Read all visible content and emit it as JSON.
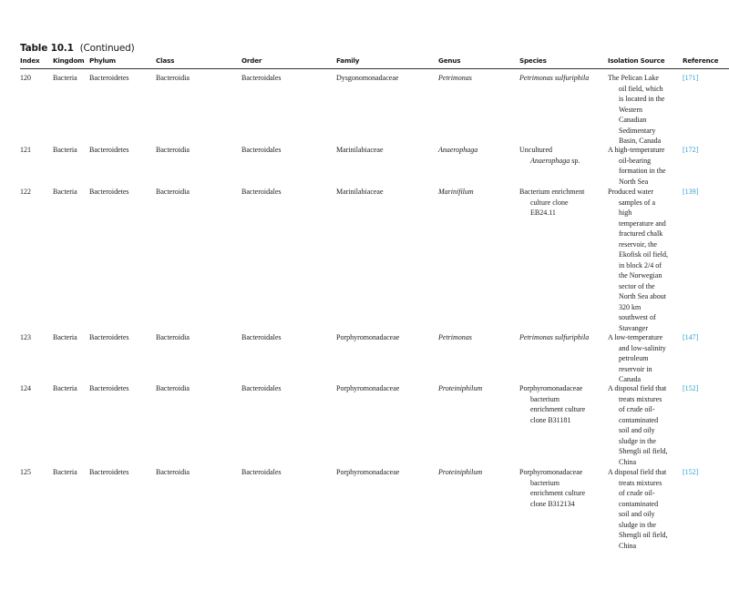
{
  "table": {
    "title": "Table 10.1",
    "title_suffix": "(Continued)",
    "headers": [
      "Index",
      "Kingdom",
      "Phylum",
      "Class",
      "Order",
      "Family",
      "Genus",
      "Species",
      "Isolation Source",
      "Reference"
    ],
    "colors": {
      "reference_link": "#2a9fd0"
    },
    "rows": [
      {
        "index": "120",
        "kingdom": "Bacteria",
        "phylum": "Bacteroidetes",
        "class": "Bacteroidia",
        "order": "Bacteroidales",
        "family": "Dysgonomonadaceae",
        "genus": "Petrimonas",
        "species": [
          "Petrimonas sulfuriphila"
        ],
        "species_italic": true,
        "source": [
          "The Pelican Lake",
          "oil field, which",
          "is located in the",
          "Western",
          "Canadian",
          "Sedimentary",
          "Basin, Canada"
        ],
        "reference": "[171]"
      },
      {
        "index": "121",
        "kingdom": "Bacteria",
        "phylum": "Bacteroidetes",
        "class": "Bacteroidia",
        "order": "Bacteroidales",
        "family": "Marinilabiaceae",
        "genus": "Anaerophaga",
        "species": [
          "Uncultured",
          "Anaerophaga sp."
        ],
        "species_italic": false,
        "source": [
          "A high-temperature",
          "oil-bearing",
          "formation in the",
          "North Sea"
        ],
        "reference": "[172]"
      },
      {
        "index": "122",
        "kingdom": "Bacteria",
        "phylum": "Bacteroidetes",
        "class": "Bacteroidia",
        "order": "Bacteroidales",
        "family": "Marinilabiaceae",
        "genus": "Marinifilum",
        "species": [
          "Bacterium enrichment",
          "culture clone",
          "EB24.11"
        ],
        "species_italic": false,
        "source": [
          "Produced water",
          "samples of a",
          "high",
          "temperature and",
          "fractured chalk",
          "reservoir, the",
          "Ekofisk oil field,",
          "in block 2/4 of",
          "the Norwegian",
          "sector of the",
          "North Sea about",
          "320 km",
          "southwest of",
          "Stavanger"
        ],
        "reference": "[139]"
      },
      {
        "index": "123",
        "kingdom": "Bacteria",
        "phylum": "Bacteroidetes",
        "class": "Bacteroidia",
        "order": "Bacteroidales",
        "family": "Porphyromonadaceae",
        "genus": "Petrimonas",
        "species": [
          "Petrimonas sulfuriphila"
        ],
        "species_italic": true,
        "source": [
          "A low-temperature",
          "and low-salinity",
          "petroleum",
          "reservoir in",
          "Canada"
        ],
        "reference": "[147]"
      },
      {
        "index": "124",
        "kingdom": "Bacteria",
        "phylum": "Bacteroidetes",
        "class": "Bacteroidia",
        "order": "Bacteroidales",
        "family": "Porphyromonadaceae",
        "genus": "Proteiniphilum",
        "species": [
          "Porphyromonadaceae",
          "bacterium",
          "enrichment culture",
          "clone B31181"
        ],
        "species_italic": false,
        "source": [
          "A disposal field that",
          "treats mixtures",
          "of crude oil-",
          "contaminated",
          "soil and oily",
          "sludge in the",
          "Shengli oil field,",
          "China"
        ],
        "reference": "[152]"
      },
      {
        "index": "125",
        "kingdom": "Bacteria",
        "phylum": "Bacteroidetes",
        "class": "Bacteroidia",
        "order": "Bacteroidales",
        "family": "Porphyromonadaceae",
        "genus": "Proteiniphilum",
        "species": [
          "Porphyromonadaceae",
          "bacterium",
          "enrichment culture",
          "clone B312134"
        ],
        "species_italic": false,
        "source": [
          "A disposal field that",
          "treats mixtures",
          "of crude oil-",
          "contaminated",
          "soil and oily",
          "sludge in the",
          "Shengli oil field,",
          "China"
        ],
        "reference": "[152]"
      }
    ]
  }
}
